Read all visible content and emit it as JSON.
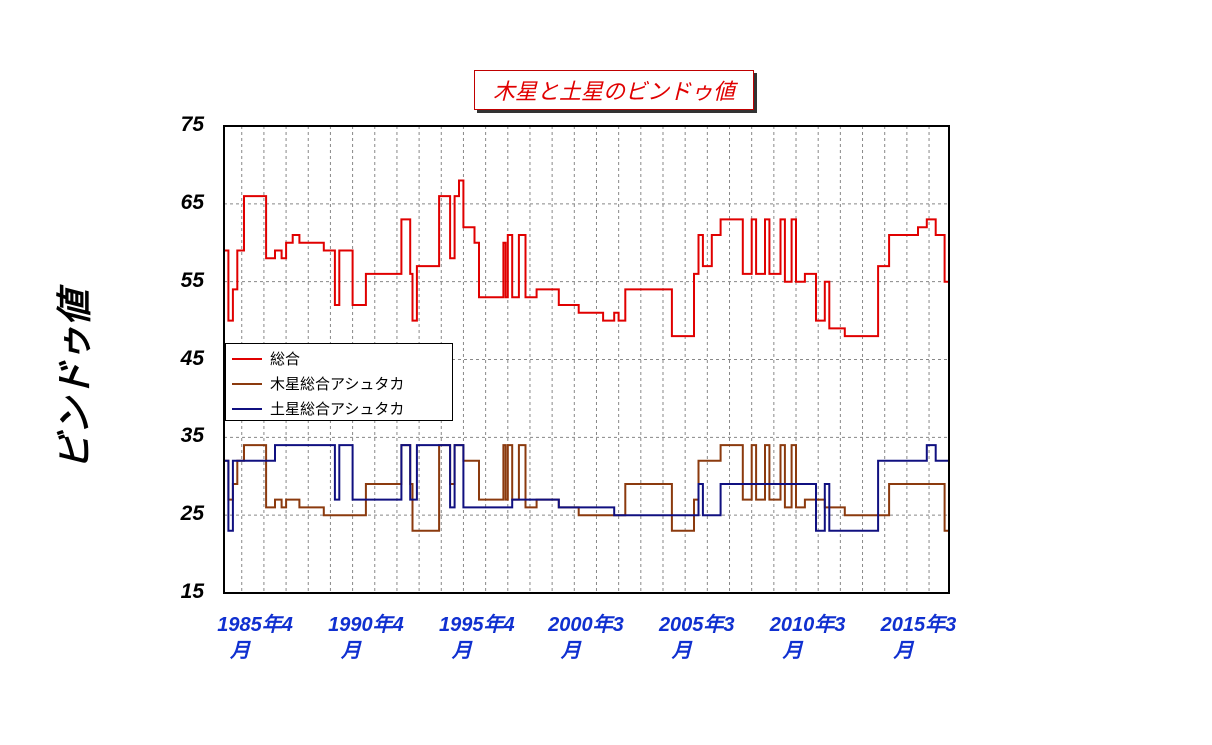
{
  "chart_data": {
    "type": "line",
    "title": "木星と土星のビンドゥ値",
    "ylabel": "ビンドゥ値",
    "xlabel": "",
    "ylim": [
      15,
      75
    ],
    "xlim": [
      1985.2,
      2017.9
    ],
    "y_ticks": [
      "75",
      "65",
      "55",
      "45",
      "35",
      "25",
      "15"
    ],
    "x_ticks": [
      {
        "x": 1985.25,
        "line1": "1985年4",
        "line2": "月"
      },
      {
        "x": 1990.25,
        "line1": "1990年4",
        "line2": "月"
      },
      {
        "x": 1995.25,
        "line1": "1995年4",
        "line2": "月"
      },
      {
        "x": 2000.17,
        "line1": "2000年3",
        "line2": "月"
      },
      {
        "x": 2005.17,
        "line1": "2005年3",
        "line2": "月"
      },
      {
        "x": 2010.17,
        "line1": "2010年3",
        "line2": "月"
      },
      {
        "x": 2015.17,
        "line1": "2015年3",
        "line2": "月"
      }
    ],
    "grid": true,
    "legend_position": "middle-left",
    "series": [
      {
        "name": "総合",
        "color": "#e00000",
        "points": [
          [
            1985.2,
            59
          ],
          [
            1985.4,
            50
          ],
          [
            1985.6,
            54
          ],
          [
            1985.8,
            59
          ],
          [
            1986.1,
            66
          ],
          [
            1987.1,
            58
          ],
          [
            1987.5,
            59
          ],
          [
            1987.8,
            58
          ],
          [
            1988.0,
            60
          ],
          [
            1988.3,
            61
          ],
          [
            1988.6,
            60
          ],
          [
            1989.7,
            59
          ],
          [
            1990.1,
            59
          ],
          [
            1990.2,
            52
          ],
          [
            1990.4,
            59
          ],
          [
            1990.8,
            59
          ],
          [
            1991.0,
            52
          ],
          [
            1991.6,
            56
          ],
          [
            1993.2,
            63
          ],
          [
            1993.6,
            56
          ],
          [
            1993.7,
            50
          ],
          [
            1993.9,
            57
          ],
          [
            1994.9,
            66
          ],
          [
            1995.4,
            58
          ],
          [
            1995.6,
            66
          ],
          [
            1995.8,
            68
          ],
          [
            1996.0,
            62
          ],
          [
            1996.5,
            60
          ],
          [
            1996.7,
            53
          ],
          [
            1997.8,
            60
          ],
          [
            1997.9,
            53
          ],
          [
            1998.0,
            61
          ],
          [
            1998.2,
            53
          ],
          [
            1998.5,
            61
          ],
          [
            1998.8,
            53
          ],
          [
            1999.3,
            54
          ],
          [
            2000.3,
            52
          ],
          [
            2001.2,
            51
          ],
          [
            2002.3,
            50
          ],
          [
            2002.8,
            51
          ],
          [
            2003.0,
            50
          ],
          [
            2003.3,
            54
          ],
          [
            2005.4,
            48
          ],
          [
            2006.4,
            56
          ],
          [
            2006.6,
            61
          ],
          [
            2006.8,
            57
          ],
          [
            2007.2,
            61
          ],
          [
            2007.6,
            63
          ],
          [
            2008.6,
            56
          ],
          [
            2009.0,
            63
          ],
          [
            2009.2,
            56
          ],
          [
            2009.6,
            63
          ],
          [
            2009.8,
            56
          ],
          [
            2010.3,
            63
          ],
          [
            2010.5,
            55
          ],
          [
            2010.8,
            63
          ],
          [
            2011.0,
            55
          ],
          [
            2011.4,
            56
          ],
          [
            2011.9,
            50
          ],
          [
            2012.3,
            55
          ],
          [
            2012.5,
            49
          ],
          [
            2013.2,
            48
          ],
          [
            2014.7,
            57
          ],
          [
            2015.2,
            61
          ],
          [
            2016.5,
            62
          ],
          [
            2016.9,
            63
          ],
          [
            2017.3,
            61
          ],
          [
            2017.6,
            61
          ],
          [
            2017.7,
            55
          ],
          [
            2017.9,
            55
          ]
        ]
      },
      {
        "name": "木星総合アシュタカ",
        "color": "#8b3a0e",
        "points": [
          [
            1985.2,
            32
          ],
          [
            1985.4,
            27
          ],
          [
            1985.6,
            29
          ],
          [
            1985.8,
            32
          ],
          [
            1986.1,
            34
          ],
          [
            1987.1,
            26
          ],
          [
            1987.5,
            27
          ],
          [
            1987.8,
            26
          ],
          [
            1988.0,
            27
          ],
          [
            1988.3,
            27
          ],
          [
            1988.6,
            26
          ],
          [
            1989.7,
            25
          ],
          [
            1990.1,
            25
          ],
          [
            1990.2,
            25
          ],
          [
            1990.4,
            25
          ],
          [
            1990.8,
            25
          ],
          [
            1991.0,
            25
          ],
          [
            1991.6,
            29
          ],
          [
            1993.2,
            34
          ],
          [
            1993.6,
            29
          ],
          [
            1993.7,
            23
          ],
          [
            1993.9,
            23
          ],
          [
            1994.9,
            34
          ],
          [
            1995.4,
            29
          ],
          [
            1995.6,
            34
          ],
          [
            1995.8,
            34
          ],
          [
            1996.0,
            32
          ],
          [
            1996.5,
            32
          ],
          [
            1996.7,
            27
          ],
          [
            1997.8,
            34
          ],
          [
            1997.9,
            27
          ],
          [
            1998.0,
            34
          ],
          [
            1998.2,
            27
          ],
          [
            1998.5,
            34
          ],
          [
            1998.8,
            26
          ],
          [
            1999.3,
            27
          ],
          [
            2000.3,
            26
          ],
          [
            2001.2,
            25
          ],
          [
            2002.3,
            25
          ],
          [
            2002.8,
            25
          ],
          [
            2003.0,
            25
          ],
          [
            2003.3,
            29
          ],
          [
            2005.4,
            23
          ],
          [
            2006.4,
            27
          ],
          [
            2006.6,
            32
          ],
          [
            2006.8,
            32
          ],
          [
            2007.2,
            32
          ],
          [
            2007.6,
            34
          ],
          [
            2008.6,
            27
          ],
          [
            2009.0,
            34
          ],
          [
            2009.2,
            27
          ],
          [
            2009.6,
            34
          ],
          [
            2009.8,
            27
          ],
          [
            2010.3,
            34
          ],
          [
            2010.5,
            26
          ],
          [
            2010.8,
            34
          ],
          [
            2011.0,
            26
          ],
          [
            2011.4,
            27
          ],
          [
            2011.9,
            27
          ],
          [
            2012.3,
            26
          ],
          [
            2012.5,
            26
          ],
          [
            2013.2,
            25
          ],
          [
            2014.7,
            25
          ],
          [
            2015.2,
            29
          ],
          [
            2016.5,
            29
          ],
          [
            2016.9,
            29
          ],
          [
            2017.3,
            29
          ],
          [
            2017.6,
            29
          ],
          [
            2017.7,
            23
          ],
          [
            2017.9,
            23
          ]
        ]
      },
      {
        "name": "土星総合アシュタカ",
        "color": "#101080",
        "points": [
          [
            1985.2,
            32
          ],
          [
            1985.4,
            23
          ],
          [
            1985.6,
            32
          ],
          [
            1985.8,
            32
          ],
          [
            1986.1,
            32
          ],
          [
            1987.1,
            32
          ],
          [
            1987.5,
            34
          ],
          [
            1987.8,
            34
          ],
          [
            1988.0,
            34
          ],
          [
            1988.3,
            34
          ],
          [
            1988.6,
            34
          ],
          [
            1989.7,
            34
          ],
          [
            1990.1,
            34
          ],
          [
            1990.2,
            27
          ],
          [
            1990.4,
            34
          ],
          [
            1990.8,
            34
          ],
          [
            1991.0,
            27
          ],
          [
            1991.6,
            27
          ],
          [
            1993.2,
            34
          ],
          [
            1993.6,
            27
          ],
          [
            1993.7,
            27
          ],
          [
            1993.9,
            34
          ],
          [
            1994.9,
            34
          ],
          [
            1995.4,
            26
          ],
          [
            1995.6,
            34
          ],
          [
            1995.8,
            34
          ],
          [
            1996.0,
            26
          ],
          [
            1996.5,
            26
          ],
          [
            1996.7,
            26
          ],
          [
            1997.8,
            26
          ],
          [
            1997.9,
            26
          ],
          [
            1998.0,
            26
          ],
          [
            1998.2,
            27
          ],
          [
            1998.5,
            27
          ],
          [
            1998.8,
            27
          ],
          [
            1999.3,
            27
          ],
          [
            2000.3,
            26
          ],
          [
            2001.2,
            26
          ],
          [
            2002.3,
            26
          ],
          [
            2002.8,
            25
          ],
          [
            2003.0,
            25
          ],
          [
            2003.3,
            25
          ],
          [
            2005.4,
            25
          ],
          [
            2006.4,
            25
          ],
          [
            2006.6,
            29
          ],
          [
            2006.8,
            25
          ],
          [
            2007.2,
            25
          ],
          [
            2007.6,
            29
          ],
          [
            2008.6,
            29
          ],
          [
            2009.0,
            29
          ],
          [
            2009.2,
            29
          ],
          [
            2009.6,
            29
          ],
          [
            2009.8,
            29
          ],
          [
            2010.3,
            29
          ],
          [
            2010.5,
            29
          ],
          [
            2010.8,
            29
          ],
          [
            2011.0,
            29
          ],
          [
            2011.4,
            29
          ],
          [
            2011.9,
            23
          ],
          [
            2012.3,
            29
          ],
          [
            2012.5,
            23
          ],
          [
            2013.2,
            23
          ],
          [
            2014.7,
            32
          ],
          [
            2015.2,
            32
          ],
          [
            2016.5,
            32
          ],
          [
            2016.9,
            34
          ],
          [
            2017.3,
            32
          ],
          [
            2017.6,
            32
          ],
          [
            2017.7,
            32
          ],
          [
            2017.9,
            32
          ]
        ]
      }
    ]
  }
}
